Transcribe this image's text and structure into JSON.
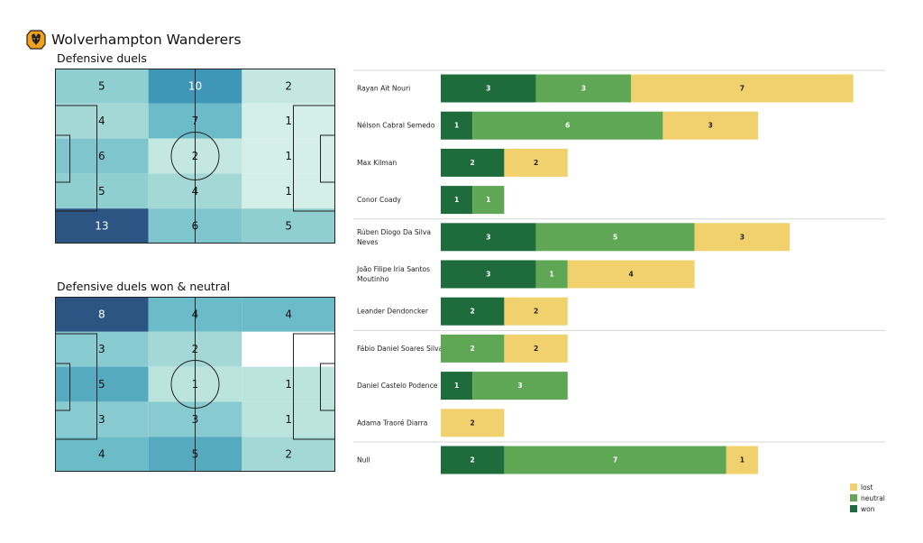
{
  "header": {
    "title": "Wolverhampton Wanderers",
    "crest_icon": "wolf-crest-icon"
  },
  "colors": {
    "won": "#1e6b3c",
    "neutral": "#5fa755",
    "lost": "#f0d16d"
  },
  "pitch1": {
    "title": "Defensive duels",
    "grid": [
      [
        5,
        10,
        2
      ],
      [
        4,
        7,
        1
      ],
      [
        6,
        2,
        1
      ],
      [
        5,
        4,
        1
      ],
      [
        13,
        6,
        5
      ]
    ]
  },
  "pitch2": {
    "title": "Defensive duels won & neutral",
    "grid": [
      [
        8,
        4,
        4
      ],
      [
        3,
        2,
        0
      ],
      [
        5,
        1,
        1
      ],
      [
        3,
        3,
        1
      ],
      [
        4,
        5,
        2
      ]
    ]
  },
  "chart_data": [
    {
      "type": "heatmap",
      "title": "Defensive duels",
      "rows": 5,
      "cols": 3,
      "values": [
        [
          5,
          10,
          2
        ],
        [
          4,
          7,
          1
        ],
        [
          6,
          2,
          1
        ],
        [
          5,
          4,
          1
        ],
        [
          13,
          6,
          5
        ]
      ]
    },
    {
      "type": "heatmap",
      "title": "Defensive duels won & neutral",
      "rows": 5,
      "cols": 3,
      "values": [
        [
          8,
          4,
          4
        ],
        [
          3,
          2,
          0
        ],
        [
          5,
          1,
          1
        ],
        [
          3,
          3,
          1
        ],
        [
          4,
          5,
          2
        ]
      ]
    },
    {
      "type": "bar",
      "stacked": true,
      "orientation": "horizontal",
      "categories": [
        "Rayan Aït Nouri",
        "Nélson Cabral Semedo",
        "Max Kilman",
        "Conor  Coady",
        "Rúben Diogo Da Silva Neves",
        "João Filipe Iria Santos Moutinho",
        "Leander Dendoncker",
        "Fábio Daniel Soares Silva",
        "Daniel Castelo Podence",
        "Adama Traoré Diarra",
        "Null"
      ],
      "series": [
        {
          "name": "won",
          "values": [
            3,
            1,
            2,
            1,
            3,
            3,
            2,
            0,
            1,
            0,
            2
          ]
        },
        {
          "name": "neutral",
          "values": [
            3,
            6,
            0,
            1,
            5,
            1,
            0,
            2,
            3,
            0,
            7
          ]
        },
        {
          "name": "lost",
          "values": [
            7,
            3,
            2,
            0,
            3,
            4,
            2,
            2,
            0,
            2,
            1
          ]
        }
      ],
      "legend": [
        "lost",
        "neutral",
        "won"
      ],
      "legend_position": "bottom-right"
    }
  ]
}
